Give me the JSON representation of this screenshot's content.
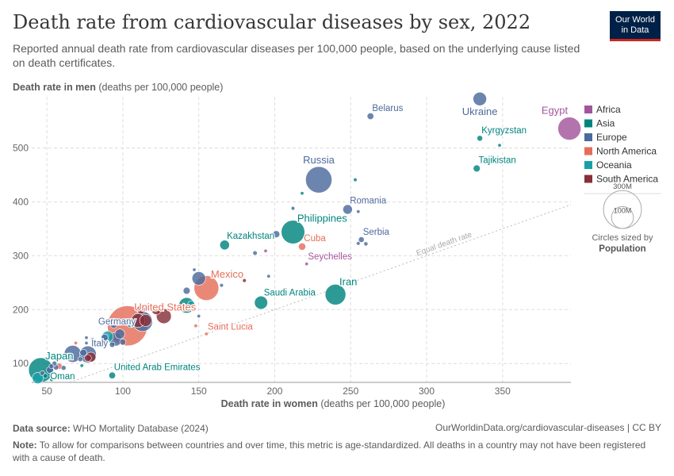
{
  "header": {
    "title": "Death rate from cardiovascular diseases by sex, 2022",
    "subtitle": "Reported annual death rate from cardiovascular diseases per 100,000 people, based on the underlying cause listed on death certificates.",
    "logo_line1": "Our World",
    "logo_line2": "in Data"
  },
  "footer": {
    "source_label": "Data source:",
    "source_text": "WHO Mortality Database (2024)",
    "url": "OurWorldinData.org/cardiovascular-diseases | CC BY",
    "note_label": "Note:",
    "note_text": "To allow for comparisons between countries and over time, this metric is age-standardized. All deaths in a country may not have been registered with a cause of death."
  },
  "colors": {
    "Africa": "#a2559c",
    "Asia": "#00847e",
    "Europe": "#4c6a9c",
    "North America": "#e56e5a",
    "Oceania": "#18a0a7",
    "South America": "#883039",
    "grid": "#dddddd",
    "axis_text": "#666666",
    "diagonal": "#bbbbbb"
  },
  "chart_data": {
    "type": "scatter",
    "title": "Death rate from cardiovascular diseases by sex, 2022",
    "xlabel_bold": "Death rate in women",
    "xlabel_rest": "(deaths per 100,000 people)",
    "ylabel_bold": "Death rate in men",
    "ylabel_rest": "(deaths per 100,000 people)",
    "xlim": [
      40,
      395
    ],
    "ylim": [
      65,
      595
    ],
    "xticks": [
      50,
      100,
      150,
      200,
      250,
      300,
      350
    ],
    "yticks": [
      100,
      200,
      300,
      400,
      500
    ],
    "grid": true,
    "diagonal_label": "Equal death rate",
    "size_legend": {
      "label_big": "300M",
      "label_small": "100M",
      "caption": "Circles sized by",
      "caption_bold": "Population"
    },
    "legend": [
      "Africa",
      "Asia",
      "Europe",
      "North America",
      "Oceania",
      "South America"
    ],
    "labeled_points": [
      {
        "name": "Ukraine",
        "x": 335,
        "y": 591,
        "pop": 38,
        "region": "Europe",
        "label_pos": "below"
      },
      {
        "name": "Belarus",
        "x": 263,
        "y": 559,
        "pop": 9.2,
        "region": "Europe",
        "label_pos": "above-right"
      },
      {
        "name": "Egypt",
        "x": 394,
        "y": 536,
        "pop": 111,
        "region": "Africa",
        "label_pos": "above-left"
      },
      {
        "name": "Kyrgyzstan",
        "x": 335,
        "y": 518,
        "pop": 6.9,
        "region": "Asia",
        "label_pos": "above-right"
      },
      {
        "name": "Tajikistan",
        "x": 333,
        "y": 462,
        "pop": 10,
        "region": "Asia",
        "label_pos": "above-right"
      },
      {
        "name": "Russia",
        "x": 229,
        "y": 441,
        "pop": 144,
        "region": "Europe",
        "label_pos": "above"
      },
      {
        "name": "Romania",
        "x": 248,
        "y": 386,
        "pop": 19,
        "region": "Europe",
        "label_pos": "above-right"
      },
      {
        "name": "Philippines",
        "x": 212,
        "y": 344,
        "pop": 115,
        "region": "Asia",
        "label_pos": "above-right"
      },
      {
        "name": "Serbia",
        "x": 257,
        "y": 330,
        "pop": 6.7,
        "region": "Europe",
        "label_pos": "above-right"
      },
      {
        "name": "Kazakhstan",
        "x": 167,
        "y": 320,
        "pop": 19.6,
        "region": "Asia",
        "label_pos": "above-right"
      },
      {
        "name": "Cuba",
        "x": 218,
        "y": 317,
        "pop": 11,
        "region": "North America",
        "label_pos": "above-right"
      },
      {
        "name": "Seychelles",
        "x": 221,
        "y": 285,
        "pop": 0.1,
        "region": "Africa",
        "label_pos": "above-right"
      },
      {
        "name": "Mexico",
        "x": 155,
        "y": 240,
        "pop": 127,
        "region": "North America",
        "label_pos": "above-right"
      },
      {
        "name": "Iran",
        "x": 240,
        "y": 228,
        "pop": 89,
        "region": "Asia",
        "label_pos": "above-right"
      },
      {
        "name": "Saudi Arabia",
        "x": 191,
        "y": 213,
        "pop": 36,
        "region": "Asia",
        "label_pos": "above-right"
      },
      {
        "name": "United States",
        "x": 103,
        "y": 170,
        "pop": 333,
        "region": "North America",
        "label_pos": "above-right"
      },
      {
        "name": "Germany",
        "x": 113,
        "y": 178,
        "pop": 84,
        "region": "Europe",
        "label_pos": "left-below"
      },
      {
        "name": "Saint Lucia",
        "x": 155,
        "y": 155,
        "pop": 0.18,
        "region": "North America",
        "label_pos": "above-right"
      },
      {
        "name": "Italy",
        "x": 77,
        "y": 117,
        "pop": 59,
        "region": "Europe",
        "label_pos": "above-right"
      },
      {
        "name": "Japan",
        "x": 46,
        "y": 88,
        "pop": 125,
        "region": "Asia",
        "label_pos": "above-right"
      },
      {
        "name": "Oman",
        "x": 49,
        "y": 77,
        "pop": 4.6,
        "region": "Asia",
        "label_pos": "right"
      },
      {
        "name": "United Arab Emirates",
        "x": 93,
        "y": 78,
        "pop": 9.4,
        "region": "Asia",
        "label_pos": "above-right"
      }
    ],
    "unlabeled_points": [
      {
        "x": 253,
        "y": 441,
        "pop": 2.8,
        "region": "Asia"
      },
      {
        "x": 348,
        "y": 505,
        "pop": 2.0,
        "region": "Asia"
      },
      {
        "x": 218,
        "y": 416,
        "pop": 1.5,
        "region": "Asia"
      },
      {
        "x": 255,
        "y": 323,
        "pop": 3.0,
        "region": "Europe"
      },
      {
        "x": 260,
        "y": 322,
        "pop": 3.5,
        "region": "Europe"
      },
      {
        "x": 255,
        "y": 382,
        "pop": 2.5,
        "region": "Europe"
      },
      {
        "x": 212,
        "y": 388,
        "pop": 3.0,
        "region": "Europe"
      },
      {
        "x": 201,
        "y": 340,
        "pop": 10,
        "region": "Europe"
      },
      {
        "x": 187,
        "y": 305,
        "pop": 4,
        "region": "Europe"
      },
      {
        "x": 194,
        "y": 309,
        "pop": 1.0,
        "region": "Africa"
      },
      {
        "x": 196,
        "y": 262,
        "pop": 2.0,
        "region": "Europe"
      },
      {
        "x": 180,
        "y": 254,
        "pop": 3.0,
        "region": "South America"
      },
      {
        "x": 150,
        "y": 258,
        "pop": 38,
        "region": "Europe"
      },
      {
        "x": 147,
        "y": 274,
        "pop": 2.0,
        "region": "Europe"
      },
      {
        "x": 165,
        "y": 245,
        "pop": 3.0,
        "region": "Europe"
      },
      {
        "x": 142,
        "y": 235,
        "pop": 10,
        "region": "Europe"
      },
      {
        "x": 142,
        "y": 208,
        "pop": 50,
        "region": "Asia"
      },
      {
        "x": 145,
        "y": 210,
        "pop": 10,
        "region": "Oceania"
      },
      {
        "x": 150,
        "y": 188,
        "pop": 2.0,
        "region": "Europe"
      },
      {
        "x": 127,
        "y": 188,
        "pop": 46,
        "region": "South America"
      },
      {
        "x": 122,
        "y": 200,
        "pop": 20,
        "region": "South America"
      },
      {
        "x": 112,
        "y": 200,
        "pop": 15,
        "region": "South America"
      },
      {
        "x": 115,
        "y": 180,
        "pop": 30,
        "region": "South America"
      },
      {
        "x": 110,
        "y": 180,
        "pop": 40,
        "region": "South America"
      },
      {
        "x": 105,
        "y": 173,
        "pop": 10,
        "region": "Oceania"
      },
      {
        "x": 148,
        "y": 170,
        "pop": 0.5,
        "region": "North America"
      },
      {
        "x": 94,
        "y": 172,
        "pop": 10,
        "region": "Europe"
      },
      {
        "x": 98,
        "y": 155,
        "pop": 20,
        "region": "Europe"
      },
      {
        "x": 95,
        "y": 145,
        "pop": 38,
        "region": "Europe"
      },
      {
        "x": 88,
        "y": 138,
        "pop": 10,
        "region": "Europe"
      },
      {
        "x": 88,
        "y": 148,
        "pop": 10,
        "region": "Europe"
      },
      {
        "x": 90,
        "y": 150,
        "pop": 26,
        "region": "Oceania"
      },
      {
        "x": 100,
        "y": 140,
        "pop": 8,
        "region": "Europe"
      },
      {
        "x": 93,
        "y": 135,
        "pop": 6,
        "region": "Europe"
      },
      {
        "x": 84,
        "y": 135,
        "pop": 5,
        "region": "Europe"
      },
      {
        "x": 76,
        "y": 148,
        "pop": 1.0,
        "region": "Europe"
      },
      {
        "x": 76,
        "y": 138,
        "pop": 1.0,
        "region": "Europe"
      },
      {
        "x": 80,
        "y": 145,
        "pop": 1.0,
        "region": "Europe"
      },
      {
        "x": 74,
        "y": 120,
        "pop": 10,
        "region": "Europe"
      },
      {
        "x": 79,
        "y": 112,
        "pop": 20,
        "region": "South America"
      },
      {
        "x": 77,
        "y": 110,
        "pop": 10,
        "region": "South America"
      },
      {
        "x": 67,
        "y": 118,
        "pop": 60,
        "region": "Europe"
      },
      {
        "x": 72,
        "y": 108,
        "pop": 5,
        "region": "Europe"
      },
      {
        "x": 69,
        "y": 138,
        "pop": 1.0,
        "region": "North America"
      },
      {
        "x": 73,
        "y": 96,
        "pop": 1.0,
        "region": "Asia"
      },
      {
        "x": 55,
        "y": 100,
        "pop": 5,
        "region": "Europe"
      },
      {
        "x": 58,
        "y": 95,
        "pop": 8,
        "region": "North America"
      },
      {
        "x": 56,
        "y": 93,
        "pop": 6,
        "region": "Europe"
      },
      {
        "x": 53,
        "y": 95,
        "pop": 5,
        "region": "Europe"
      },
      {
        "x": 61,
        "y": 92,
        "pop": 5,
        "region": "Europe"
      },
      {
        "x": 52,
        "y": 88,
        "pop": 10,
        "region": "Europe"
      },
      {
        "x": 47,
        "y": 82,
        "pop": 5,
        "region": "Europe"
      },
      {
        "x": 44,
        "y": 73,
        "pop": 26,
        "region": "Oceania"
      },
      {
        "x": 53,
        "y": 70,
        "pop": 1.0,
        "region": "Asia"
      }
    ]
  }
}
